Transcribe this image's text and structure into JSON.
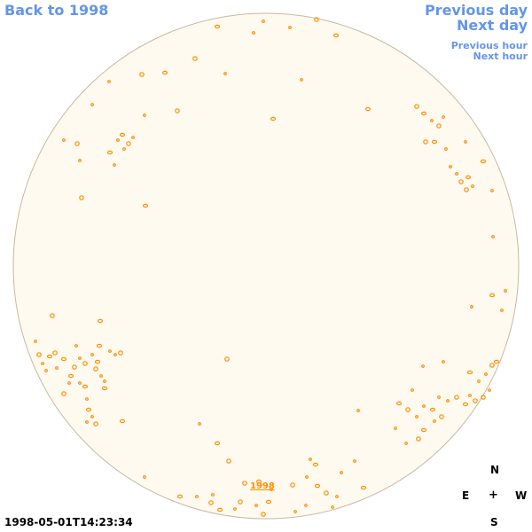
{
  "nav": {
    "back_label": "Back to 1998",
    "prev_day_label": "Previous day",
    "next_day_label": "Next day",
    "prev_hour_label": "Previous hour",
    "next_hour_label": "Next hour"
  },
  "center_link": "1998",
  "compass": {
    "n": "N",
    "e": "E",
    "plus": "+",
    "w": "W",
    "s": "S"
  },
  "timestamp": "1998-05-01T14:23:34",
  "colors": {
    "link": "#6495ed",
    "disk_fill": "#fffaf0",
    "disk_edge": "#c8b9a0",
    "feature": "#ff8c00"
  }
}
